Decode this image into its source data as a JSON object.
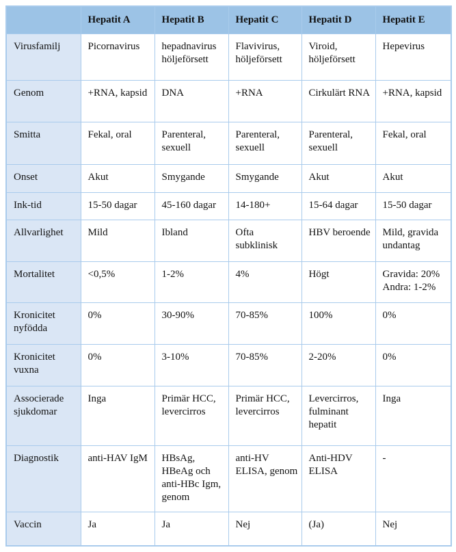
{
  "table": {
    "header": [
      "",
      "Hepatit A",
      "Hepatit B",
      "Hepatit C",
      "Hepatit D",
      "Hepatit E"
    ],
    "rows": [
      {
        "label": "Virusfamilj",
        "cells": [
          "Picornavirus",
          "hepadnavirus höljeförsett",
          "Flavivirus, höljeförsett",
          "Viroid, höljeförsett",
          "Hepevirus"
        ]
      },
      {
        "label": "Genom",
        "cells": [
          "+RNA, kapsid",
          "DNA",
          "+RNA",
          "Cirkulärt RNA",
          "+RNA, kapsid"
        ]
      },
      {
        "label": "Smitta",
        "cells": [
          "Fekal, oral",
          "Parenteral, sexuell",
          "Parenteral, sexuell",
          "Parenteral, sexuell",
          "Fekal, oral"
        ]
      },
      {
        "label": "Onset",
        "cells": [
          "Akut",
          "Smygande",
          "Smygande",
          "Akut",
          "Akut"
        ]
      },
      {
        "label": "Ink-tid",
        "cells": [
          "15-50 dagar",
          "45-160 dagar",
          "14-180+",
          "15-64 dagar",
          "15-50 dagar"
        ]
      },
      {
        "label": "Allvarlighet",
        "cells": [
          "Mild",
          "Ibland",
          "Ofta subklinisk",
          "HBV beroende",
          "Mild, gravida undantag"
        ]
      },
      {
        "label": "Mortalitet",
        "cells": [
          "<0,5%",
          "1-2%",
          "4%",
          "Högt",
          "Gravida: 20% Andra: 1-2%"
        ]
      },
      {
        "label": "Kronicitet nyfödda",
        "cells": [
          "0%",
          "30-90%",
          "70-85%",
          "100%",
          "0%"
        ]
      },
      {
        "label": "Kronicitet vuxna",
        "cells": [
          "0%",
          "3-10%",
          "70-85%",
          "2-20%",
          "0%"
        ]
      },
      {
        "label": "Associerade sjukdomar",
        "cells": [
          "Inga",
          "Primär HCC, levercirros",
          "Primär HCC, levercirros",
          "Levercirros, fulminant hepatit",
          "Inga"
        ]
      },
      {
        "label": "Diagnostik",
        "cells": [
          "anti-HAV IgM",
          "HBsAg, HBeAg och anti-HBc Igm, genom",
          "anti-HV ELISA, genom",
          "Anti-HDV ELISA",
          "-"
        ]
      },
      {
        "label": "Vaccin",
        "cells": [
          "Ja",
          "Ja",
          "Nej",
          "(Ja)",
          "Nej"
        ]
      }
    ],
    "colors": {
      "header_bg": "#9CC3E6",
      "label_bg": "#DAE6F5",
      "grid_line": "#A9CBEC",
      "text": "#111111"
    }
  }
}
